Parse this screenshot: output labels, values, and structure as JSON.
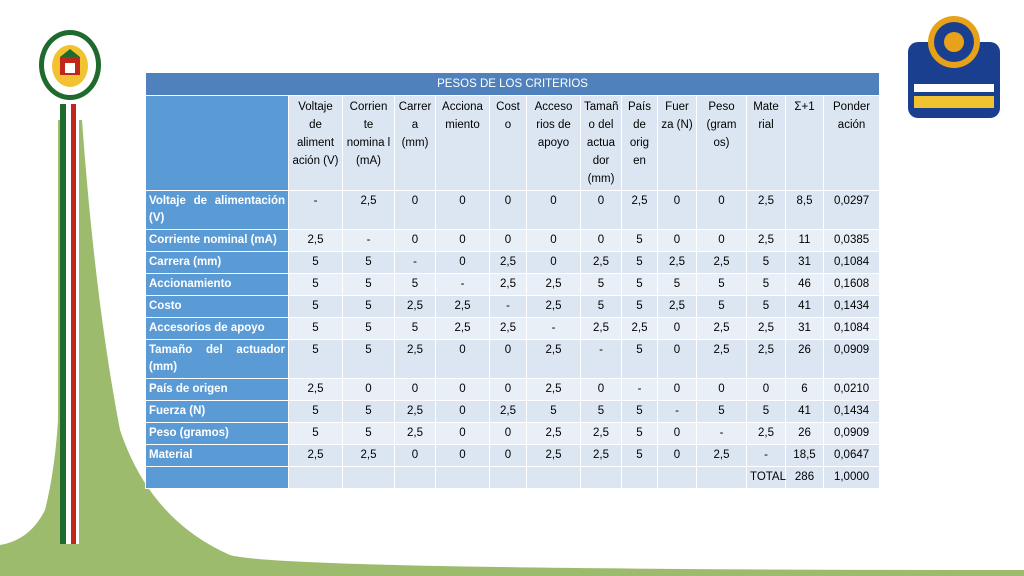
{
  "table": {
    "title": "PESOS DE LOS CRITERIOS",
    "headers": [
      "Voltaje de aliment ación (V)",
      "Corrien te nomina l (mA)",
      "Carrer a (mm)",
      "Acciona miento",
      "Cost o",
      "Acceso rios de apoyo",
      "Tamañ o del actua dor (mm)",
      "País de orig en",
      "Fuer za (N)",
      "Peso (gram os)",
      "Mate rial",
      "Σ+1",
      "Ponder ación"
    ],
    "rows": [
      {
        "label": "Voltaje de alimentación (V)",
        "cells": [
          "-",
          "2,5",
          "0",
          "0",
          "0",
          "0",
          "0",
          "2,5",
          "0",
          "0",
          "2,5",
          "8,5",
          "0,0297"
        ]
      },
      {
        "label": "Corriente nominal (mA)",
        "cells": [
          "2,5",
          "-",
          "0",
          "0",
          "0",
          "0",
          "0",
          "5",
          "0",
          "0",
          "2,5",
          "11",
          "0,0385"
        ]
      },
      {
        "label": "Carrera (mm)",
        "cells": [
          "5",
          "5",
          "-",
          "0",
          "2,5",
          "0",
          "2,5",
          "5",
          "2,5",
          "2,5",
          "5",
          "31",
          "0,1084"
        ]
      },
      {
        "label": "Accionamiento",
        "cells": [
          "5",
          "5",
          "5",
          "-",
          "2,5",
          "2,5",
          "5",
          "5",
          "5",
          "5",
          "5",
          "46",
          "0,1608"
        ]
      },
      {
        "label": "Costo",
        "cells": [
          "5",
          "5",
          "2,5",
          "2,5",
          "-",
          "2,5",
          "5",
          "5",
          "2,5",
          "5",
          "5",
          "41",
          "0,1434"
        ]
      },
      {
        "label": "Accesorios de apoyo",
        "cells": [
          "5",
          "5",
          "5",
          "2,5",
          "2,5",
          "-",
          "2,5",
          "2,5",
          "0",
          "2,5",
          "2,5",
          "31",
          "0,1084"
        ]
      },
      {
        "label": "Tamaño del actuador (mm)",
        "cells": [
          "5",
          "5",
          "2,5",
          "0",
          "0",
          "2,5",
          "-",
          "5",
          "0",
          "2,5",
          "2,5",
          "26",
          "0,0909"
        ]
      },
      {
        "label": "País de origen",
        "cells": [
          "2,5",
          "0",
          "0",
          "0",
          "0",
          "2,5",
          "0",
          "-",
          "0",
          "0",
          "0",
          "6",
          "0,0210"
        ]
      },
      {
        "label": "Fuerza (N)",
        "cells": [
          "5",
          "5",
          "2,5",
          "0",
          "2,5",
          "5",
          "5",
          "5",
          "-",
          "5",
          "5",
          "41",
          "0,1434"
        ]
      },
      {
        "label": "Peso (gramos)",
        "cells": [
          "5",
          "5",
          "2,5",
          "0",
          "0",
          "2,5",
          "2,5",
          "5",
          "0",
          "-",
          "2,5",
          "26",
          "0,0909"
        ]
      },
      {
        "label": "Material",
        "cells": [
          "2,5",
          "2,5",
          "0",
          "0",
          "0",
          "2,5",
          "2,5",
          "5",
          "0",
          "2,5",
          "-",
          "18,5",
          "0,0647"
        ]
      }
    ],
    "total": {
      "label": "TOTAL",
      "sum": "286",
      "weight": "1,0000"
    }
  },
  "logos": {
    "left": "espe-university-seal",
    "right": "espe-ingenieria-mecatronica-logo"
  },
  "colors": {
    "header_blue": "#4f81bd",
    "row_label_blue": "#5b9bd5",
    "cell_light": "#dce6f2",
    "green": "#9cbb6c",
    "red_stripe": "#c0261c",
    "dark_green_stripe": "#1f6b2d"
  }
}
